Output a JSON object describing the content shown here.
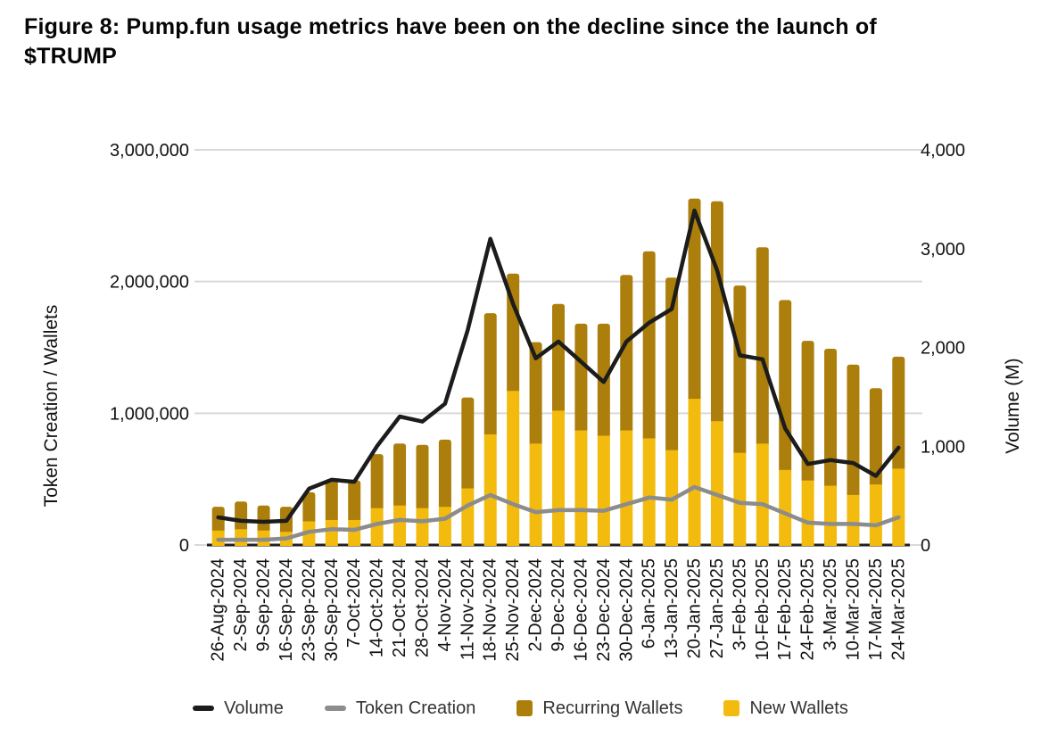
{
  "figure": {
    "title_line1": "Figure 8: Pump.fun usage metrics have been on the decline since the launch of",
    "title_line2": "$TRUMP"
  },
  "chart_data": {
    "type": "combo_stacked_bar_line",
    "categories": [
      "26-Aug-2024",
      "2-Sep-2024",
      "9-Sep-2024",
      "16-Sep-2024",
      "23-Sep-2024",
      "30-Sep-2024",
      "7-Oct-2024",
      "14-Oct-2024",
      "21-Oct-2024",
      "28-Oct-2024",
      "4-Nov-2024",
      "11-Nov-2024",
      "18-Nov-2024",
      "25-Nov-2024",
      "2-Dec-2024",
      "9-Dec-2024",
      "16-Dec-2024",
      "23-Dec-2024",
      "30-Dec-2024",
      "6-Jan-2025",
      "13-Jan-2025",
      "20-Jan-2025",
      "27-Jan-2025",
      "3-Feb-2025",
      "10-Feb-2025",
      "17-Feb-2025",
      "24-Feb-2025",
      "3-Mar-2025",
      "10-Mar-2025",
      "17-Mar-2025",
      "24-Mar-2025"
    ],
    "series": [
      {
        "name": "Volume",
        "type": "line",
        "axis": "right",
        "color": "#1C1C1C",
        "values": [
          280,
          245,
          235,
          245,
          570,
          660,
          640,
          1000,
          1300,
          1250,
          1430,
          2175,
          3100,
          2440,
          1890,
          2060,
          1855,
          1650,
          2060,
          2250,
          2390,
          3385,
          2780,
          1920,
          1880,
          1180,
          820,
          860,
          830,
          700,
          985
        ]
      },
      {
        "name": "Token Creation",
        "type": "line",
        "axis": "left",
        "color": "#8C8C8C",
        "values": [
          40000,
          40000,
          40000,
          50000,
          100000,
          120000,
          115000,
          160000,
          190000,
          180000,
          200000,
          300000,
          380000,
          310000,
          250000,
          265000,
          265000,
          260000,
          310000,
          360000,
          345000,
          440000,
          380000,
          320000,
          310000,
          240000,
          170000,
          160000,
          160000,
          150000,
          210000
        ]
      },
      {
        "name": "Recurring Wallets",
        "type": "bar",
        "axis": "left",
        "color": "#AC7E0B",
        "values": [
          180000,
          210000,
          190000,
          190000,
          220000,
          310000,
          300000,
          410000,
          470000,
          480000,
          510000,
          690000,
          920000,
          890000,
          770000,
          810000,
          810000,
          850000,
          1180000,
          1420000,
          1310000,
          1520000,
          1670000,
          1270000,
          1490000,
          1290000,
          1060000,
          1040000,
          990000,
          730000,
          850000
        ]
      },
      {
        "name": "New Wallets",
        "type": "bar",
        "axis": "left",
        "color": "#F2BB0D",
        "values": [
          110000,
          120000,
          110000,
          100000,
          180000,
          190000,
          190000,
          280000,
          300000,
          280000,
          290000,
          430000,
          840000,
          1170000,
          770000,
          1020000,
          870000,
          830000,
          870000,
          810000,
          720000,
          1110000,
          940000,
          700000,
          770000,
          570000,
          490000,
          450000,
          380000,
          460000,
          580000
        ]
      }
    ],
    "left_axis": {
      "title": "Token Creation / Wallets",
      "min": 0,
      "max": 3000000,
      "ticks": [
        {
          "label": "0",
          "value": 0
        },
        {
          "label": "1,000,000",
          "value": 1000000
        },
        {
          "label": "2,000,000",
          "value": 2000000
        },
        {
          "label": "3,000,000",
          "value": 3000000
        }
      ]
    },
    "right_axis": {
      "title": "Volume (M)",
      "min": 0,
      "max": 4000,
      "ticks": [
        {
          "label": "0",
          "value": 0
        },
        {
          "label": "1,000",
          "value": 1000
        },
        {
          "label": "2,000",
          "value": 2000
        },
        {
          "label": "3,000",
          "value": 3000
        },
        {
          "label": "4,000",
          "value": 4000
        }
      ]
    },
    "legend": [
      {
        "label": "Volume",
        "swatch": "line",
        "color": "#1C1C1C"
      },
      {
        "label": "Token Creation",
        "swatch": "line",
        "color": "#8C8C8C"
      },
      {
        "label": "Recurring Wallets",
        "swatch": "square",
        "color": "#AC7E0B"
      },
      {
        "label": "New Wallets",
        "swatch": "square",
        "color": "#F2BB0D"
      }
    ],
    "gridline_color": "#D9D9D9",
    "axis_line_color": "#1F1F1F",
    "legend_position": "bottom",
    "grid_on": true
  }
}
